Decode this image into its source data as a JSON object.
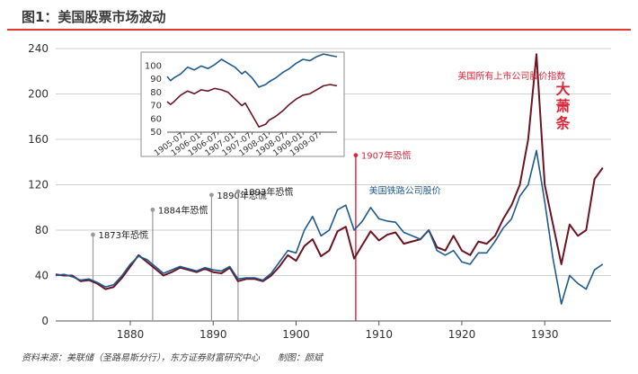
{
  "title": "图1：美国股票市场波动",
  "source": "资料来源：美联储（圣路易斯分行），东方证券财富研究中心　　制图：颜斌",
  "colors": {
    "all_stocks": "#6b1424",
    "railroad": "#1f5a8e",
    "highlight": "#d9263b",
    "annotation_line": "#9a9a9a",
    "title_bar": "#e03a2f"
  },
  "chart_data": {
    "type": "line",
    "title": "图1：美国股票市场波动",
    "xlim": [
      1871,
      1938
    ],
    "ylim": [
      0,
      240
    ],
    "xticks": [
      1880,
      1890,
      1900,
      1910,
      1920,
      1930
    ],
    "yticks": [
      0,
      40,
      80,
      120,
      160,
      200,
      240
    ],
    "grid": true,
    "series": [
      {
        "name": "美国所有上市公司股价指数",
        "color": "#6b1424",
        "points": [
          [
            1871,
            41
          ],
          [
            1872,
            40
          ],
          [
            1873,
            40
          ],
          [
            1874,
            35
          ],
          [
            1875,
            36
          ],
          [
            1876,
            33
          ],
          [
            1877,
            28
          ],
          [
            1878,
            30
          ],
          [
            1879,
            38
          ],
          [
            1880,
            48
          ],
          [
            1881,
            58
          ],
          [
            1882,
            52
          ],
          [
            1883,
            46
          ],
          [
            1884,
            40
          ],
          [
            1885,
            43
          ],
          [
            1886,
            47
          ],
          [
            1887,
            45
          ],
          [
            1888,
            43
          ],
          [
            1889,
            46
          ],
          [
            1890,
            43
          ],
          [
            1891,
            42
          ],
          [
            1892,
            47
          ],
          [
            1893,
            35
          ],
          [
            1894,
            37
          ],
          [
            1895,
            37
          ],
          [
            1896,
            35
          ],
          [
            1897,
            40
          ],
          [
            1898,
            48
          ],
          [
            1899,
            58
          ],
          [
            1900,
            53
          ],
          [
            1901,
            66
          ],
          [
            1902,
            72
          ],
          [
            1903,
            57
          ],
          [
            1904,
            62
          ],
          [
            1905,
            79
          ],
          [
            1906,
            83
          ],
          [
            1907,
            55
          ],
          [
            1908,
            67
          ],
          [
            1909,
            79
          ],
          [
            1910,
            71
          ],
          [
            1911,
            76
          ],
          [
            1912,
            78
          ],
          [
            1913,
            68
          ],
          [
            1914,
            70
          ],
          [
            1915,
            72
          ],
          [
            1916,
            80
          ],
          [
            1917,
            65
          ],
          [
            1918,
            62
          ],
          [
            1919,
            75
          ],
          [
            1920,
            62
          ],
          [
            1921,
            58
          ],
          [
            1922,
            70
          ],
          [
            1923,
            68
          ],
          [
            1924,
            75
          ],
          [
            1925,
            90
          ],
          [
            1926,
            102
          ],
          [
            1927,
            120
          ],
          [
            1928,
            160
          ],
          [
            1929,
            235
          ],
          [
            1930,
            120
          ],
          [
            1931,
            85
          ],
          [
            1932,
            50
          ],
          [
            1933,
            85
          ],
          [
            1934,
            75
          ],
          [
            1935,
            80
          ],
          [
            1936,
            125
          ],
          [
            1937,
            135
          ]
        ]
      },
      {
        "name": "美国铁路公司股价",
        "color": "#1f5a8e",
        "points": [
          [
            1871,
            40
          ],
          [
            1872,
            41
          ],
          [
            1873,
            39
          ],
          [
            1874,
            36
          ],
          [
            1875,
            37
          ],
          [
            1876,
            34
          ],
          [
            1877,
            30
          ],
          [
            1878,
            32
          ],
          [
            1879,
            40
          ],
          [
            1880,
            50
          ],
          [
            1881,
            57
          ],
          [
            1882,
            54
          ],
          [
            1883,
            48
          ],
          [
            1884,
            42
          ],
          [
            1885,
            45
          ],
          [
            1886,
            48
          ],
          [
            1887,
            46
          ],
          [
            1888,
            44
          ],
          [
            1889,
            47
          ],
          [
            1890,
            45
          ],
          [
            1891,
            44
          ],
          [
            1892,
            48
          ],
          [
            1893,
            37
          ],
          [
            1894,
            38
          ],
          [
            1895,
            38
          ],
          [
            1896,
            36
          ],
          [
            1897,
            42
          ],
          [
            1898,
            52
          ],
          [
            1899,
            62
          ],
          [
            1900,
            60
          ],
          [
            1901,
            80
          ],
          [
            1902,
            92
          ],
          [
            1903,
            75
          ],
          [
            1904,
            80
          ],
          [
            1905,
            98
          ],
          [
            1906,
            102
          ],
          [
            1907,
            80
          ],
          [
            1908,
            88
          ],
          [
            1909,
            100
          ],
          [
            1910,
            90
          ],
          [
            1911,
            88
          ],
          [
            1912,
            87
          ],
          [
            1913,
            78
          ],
          [
            1914,
            75
          ],
          [
            1915,
            72
          ],
          [
            1916,
            80
          ],
          [
            1917,
            62
          ],
          [
            1918,
            58
          ],
          [
            1919,
            62
          ],
          [
            1920,
            52
          ],
          [
            1921,
            50
          ],
          [
            1922,
            60
          ],
          [
            1923,
            60
          ],
          [
            1924,
            70
          ],
          [
            1925,
            82
          ],
          [
            1926,
            90
          ],
          [
            1927,
            110
          ],
          [
            1928,
            120
          ],
          [
            1929,
            150
          ],
          [
            1930,
            105
          ],
          [
            1931,
            55
          ],
          [
            1932,
            15
          ],
          [
            1933,
            40
          ],
          [
            1934,
            33
          ],
          [
            1935,
            28
          ],
          [
            1936,
            45
          ],
          [
            1937,
            50
          ]
        ]
      }
    ],
    "annotations": [
      {
        "label": "1873年恐慌",
        "year": 1875.5,
        "label_y": 76,
        "line_top": 76
      },
      {
        "label": "1884年恐慌",
        "year": 1882.7,
        "label_y": 98,
        "line_top": 98
      },
      {
        "label": "1890年恐慌",
        "year": 1889.8,
        "label_y": 111,
        "line_top": 111
      },
      {
        "label": "1893年恐慌",
        "year": 1893.0,
        "label_y": 114,
        "line_top": 114
      },
      {
        "label": "1907年恐慌",
        "year": 1907.2,
        "label_y": 146,
        "line_top": 146,
        "highlight": true
      }
    ],
    "legend_labels": [
      {
        "label": "美国所有上市公司股价指数",
        "year": 1919.5,
        "y": 213,
        "color": "#d9263b"
      },
      {
        "label": "美国铁路公司股价",
        "year": 1908.8,
        "y": 112,
        "color": "#1f5a8e"
      }
    ],
    "big_label": {
      "label": "大萧条",
      "year": 1932.2,
      "y": 200,
      "color": "#d9263b"
    },
    "inset": {
      "ylim": [
        50,
        105
      ],
      "yticks": [
        50,
        60,
        70,
        80,
        90,
        100
      ],
      "xlim": [
        1905.0,
        1910.0
      ],
      "xtick_labels": [
        "1905-07",
        "1906-01",
        "1906-07",
        "1907-01",
        "1907-07",
        "1908-01",
        "1908-07",
        "1909-01",
        "1909-07"
      ],
      "xtick_positions": [
        1905.5,
        1906.0,
        1906.5,
        1907.0,
        1907.5,
        1908.0,
        1908.5,
        1909.0,
        1909.5
      ],
      "series": [
        {
          "name": "美国铁路公司股价",
          "color": "#1f5a8e",
          "points": [
            [
              1905.0,
              92
            ],
            [
              1905.1,
              89
            ],
            [
              1905.2,
              91
            ],
            [
              1905.4,
              94
            ],
            [
              1905.6,
              99
            ],
            [
              1905.8,
              97
            ],
            [
              1906.0,
              100
            ],
            [
              1906.2,
              98
            ],
            [
              1906.4,
              101
            ],
            [
              1906.6,
              105
            ],
            [
              1906.8,
              102
            ],
            [
              1907.0,
              99
            ],
            [
              1907.2,
              94
            ],
            [
              1907.3,
              96
            ],
            [
              1907.5,
              91
            ],
            [
              1907.7,
              84
            ],
            [
              1907.9,
              86
            ],
            [
              1908.0,
              88
            ],
            [
              1908.2,
              91
            ],
            [
              1908.4,
              95
            ],
            [
              1908.6,
              98
            ],
            [
              1908.8,
              102
            ],
            [
              1909.0,
              105
            ],
            [
              1909.2,
              104
            ],
            [
              1909.4,
              107
            ],
            [
              1909.6,
              109
            ],
            [
              1909.8,
              108
            ],
            [
              1910.0,
              107
            ]
          ]
        },
        {
          "name": "美国所有上市公司股价指数",
          "color": "#6b1424",
          "points": [
            [
              1905.0,
              73
            ],
            [
              1905.1,
              71
            ],
            [
              1905.2,
              73
            ],
            [
              1905.4,
              78
            ],
            [
              1905.6,
              81
            ],
            [
              1905.8,
              79
            ],
            [
              1906.0,
              82
            ],
            [
              1906.2,
              81
            ],
            [
              1906.4,
              83
            ],
            [
              1906.6,
              82
            ],
            [
              1906.8,
              80
            ],
            [
              1907.0,
              75
            ],
            [
              1907.2,
              70
            ],
            [
              1907.3,
              72
            ],
            [
              1907.5,
              63
            ],
            [
              1907.7,
              54
            ],
            [
              1907.9,
              56
            ],
            [
              1908.0,
              59
            ],
            [
              1908.2,
              62
            ],
            [
              1908.4,
              66
            ],
            [
              1908.6,
              71
            ],
            [
              1908.8,
              75
            ],
            [
              1909.0,
              78
            ],
            [
              1909.2,
              79
            ],
            [
              1909.4,
              82
            ],
            [
              1909.6,
              85
            ],
            [
              1909.8,
              86
            ],
            [
              1910.0,
              85
            ]
          ]
        }
      ]
    }
  }
}
